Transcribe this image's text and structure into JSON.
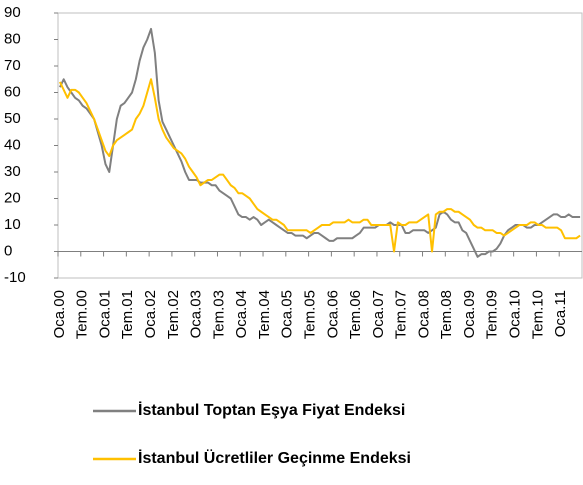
{
  "chart_data": {
    "type": "line",
    "categories": [
      "Oca.00",
      null,
      null,
      null,
      null,
      null,
      "Tem.00",
      null,
      null,
      null,
      null,
      null,
      "Oca.01",
      null,
      null,
      null,
      null,
      null,
      "Tem.01",
      null,
      null,
      null,
      null,
      null,
      "Oca.02",
      null,
      null,
      null,
      null,
      null,
      "Tem.02",
      null,
      null,
      null,
      null,
      null,
      "Oca.03",
      null,
      null,
      null,
      null,
      null,
      "Tem.03",
      null,
      null,
      null,
      null,
      null,
      "Oca.04",
      null,
      null,
      null,
      null,
      null,
      "Tem.04",
      null,
      null,
      null,
      null,
      null,
      "Oca.05",
      null,
      null,
      null,
      null,
      null,
      "Tem.05",
      null,
      null,
      null,
      null,
      null,
      "Oca.06",
      null,
      null,
      null,
      null,
      null,
      "Tem.06",
      null,
      null,
      null,
      null,
      null,
      "Oca.07",
      null,
      null,
      null,
      null,
      null,
      "Tem.07",
      null,
      null,
      null,
      null,
      null,
      "Oca.08",
      null,
      null,
      null,
      null,
      null,
      "Tem.08",
      null,
      null,
      null,
      null,
      null,
      "Oca.09",
      null,
      null,
      null,
      null,
      null,
      "Tem.09",
      null,
      null,
      null,
      null,
      null,
      "Oca.10",
      null,
      null,
      null,
      null,
      null,
      "Tem.10",
      null,
      null,
      null,
      null,
      null,
      "Oca.11",
      null,
      null,
      null,
      null,
      null
    ],
    "series": [
      {
        "name": "İstanbul Toptan Eşya Fiyat Endeksi",
        "color": "#808080",
        "values": [
          62,
          65,
          62,
          60,
          58,
          57,
          55,
          54,
          52,
          50,
          45,
          40,
          33,
          30,
          40,
          50,
          55,
          56,
          58,
          60,
          65,
          72,
          77,
          80,
          84,
          75,
          57,
          49,
          46,
          43,
          40,
          37,
          34,
          30,
          27,
          27,
          27,
          26,
          26,
          26,
          25,
          25,
          23,
          22,
          21,
          20,
          17,
          14,
          13,
          13,
          12,
          13,
          12,
          10,
          11,
          12,
          11,
          10,
          9,
          8,
          7,
          7,
          6,
          6,
          6,
          5,
          6,
          7,
          7,
          6,
          5,
          4,
          4,
          5,
          5,
          5,
          5,
          5,
          6,
          7,
          9,
          9,
          9,
          9,
          10,
          10,
          10,
          11,
          10,
          10,
          10,
          7,
          7,
          8,
          8,
          8,
          8,
          7,
          8,
          9,
          14,
          15,
          14,
          12,
          11,
          11,
          8,
          7,
          4,
          1,
          -2,
          -1,
          -1,
          0,
          0,
          1,
          3,
          6,
          8,
          9,
          10,
          10,
          10,
          9,
          9,
          10,
          10,
          11,
          12,
          13,
          14,
          14,
          13,
          13,
          14,
          13,
          13,
          13
        ]
      },
      {
        "name": "İstanbul Ücretliler Geçinme Endeksi",
        "color": "#ffc000",
        "values": [
          64,
          61,
          58,
          61,
          61,
          60,
          58,
          56,
          53,
          50,
          46,
          42,
          38,
          36,
          40,
          42,
          43,
          44,
          45,
          46,
          50,
          52,
          55,
          60,
          65,
          58,
          50,
          46,
          43,
          41,
          39,
          38,
          37,
          35,
          32,
          30,
          28,
          25,
          26,
          27,
          27,
          28,
          29,
          29,
          27,
          25,
          24,
          22,
          22,
          21,
          20,
          18,
          16,
          15,
          14,
          13,
          12,
          12,
          11,
          10,
          8,
          8,
          8,
          8,
          8,
          8,
          7,
          8,
          9,
          10,
          10,
          10,
          11,
          11,
          11,
          11,
          12,
          11,
          11,
          11,
          12,
          12,
          10,
          10,
          10,
          10,
          10,
          10,
          0,
          11,
          10,
          10,
          11,
          11,
          11,
          12,
          13,
          14,
          0,
          14,
          15,
          15,
          16,
          16,
          15,
          15,
          14,
          13,
          12,
          10,
          9,
          9,
          8,
          8,
          8,
          7,
          7,
          6,
          7,
          8,
          9,
          10,
          10,
          10,
          11,
          11,
          10,
          10,
          9,
          9,
          9,
          9,
          8,
          5,
          5,
          5,
          5,
          6
        ]
      }
    ],
    "ylim": [
      -10,
      90
    ],
    "yticks": [
      -10,
      0,
      10,
      20,
      30,
      40,
      50,
      60,
      70,
      80,
      90
    ]
  }
}
